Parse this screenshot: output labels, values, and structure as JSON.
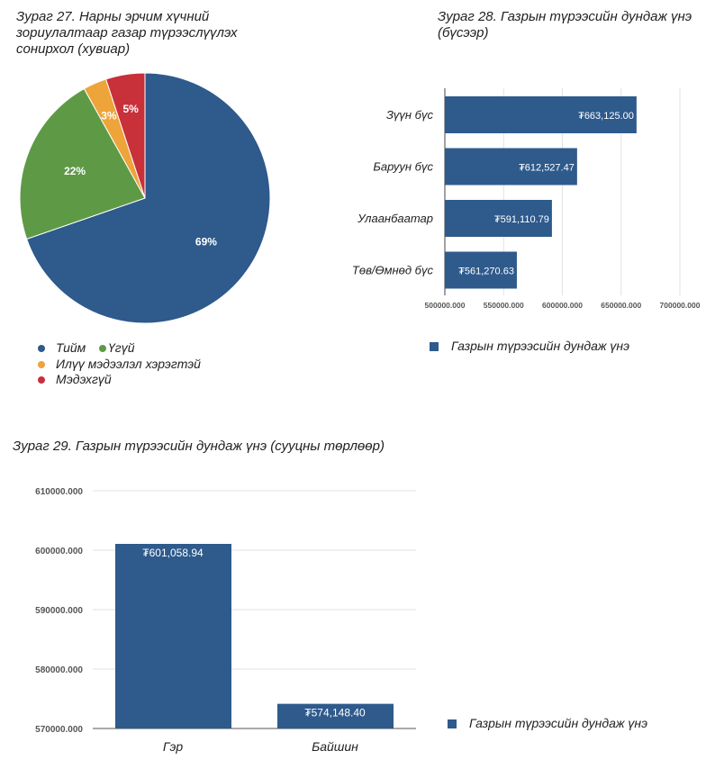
{
  "chart_data": [
    {
      "type": "pie",
      "title": "Зураг 27. Нарны эрчим хүчний зориулалтаар газар түрээслүүлэх сонирхол (хувиар)",
      "slices": [
        {
          "label": "Тийм",
          "value": 69,
          "data_label": "69%",
          "color": "#2e5a8c"
        },
        {
          "label": "Үгүй",
          "value": 22,
          "data_label": "22%",
          "color": "#5e9a46"
        },
        {
          "label": "Илүү мэдээлэл хэрэгтэй",
          "value": 3,
          "data_label": "3%",
          "color": "#eda43a"
        },
        {
          "label": "Мэдэхгүй",
          "value": 5,
          "data_label": "5%",
          "color": "#c8303a"
        }
      ],
      "legend_position": "bottom-left"
    },
    {
      "type": "bar",
      "orientation": "horizontal",
      "title": "Зураг 28. Газрын түрээсийн дундаж үнэ (бүсээр)",
      "categories": [
        "Зүүн бүс",
        "Баруун бүс",
        "Улаанбаатар",
        "Төв/Өмнөд бүс"
      ],
      "values": [
        663125.0,
        612527.47,
        591110.79,
        561270.63
      ],
      "data_labels": [
        "₮663,125.00",
        "₮612,527.47",
        "₮591,110.79",
        "₮561,270.63"
      ],
      "xlim": [
        500000,
        700000
      ],
      "ticks": [
        500000,
        550000,
        600000,
        650000,
        700000
      ],
      "tick_labels": [
        "500000.000",
        "550000.000",
        "600000.000",
        "650000.000",
        "700000.000"
      ],
      "series_name": "Газрын түрээсийн дундаж үнэ",
      "color": "#2e5a8c",
      "grid": true,
      "legend_position": "bottom"
    },
    {
      "type": "bar",
      "orientation": "vertical",
      "title": "Зураг 29. Газрын түрээсийн дундаж үнэ (сууцны төрлөөр)",
      "categories": [
        "Гэр",
        "Байшин"
      ],
      "values": [
        601058.94,
        574148.4
      ],
      "data_labels": [
        "₮601,058.94",
        "₮574,148.40"
      ],
      "ylim": [
        570000,
        610000
      ],
      "ticks": [
        570000,
        580000,
        590000,
        600000,
        610000
      ],
      "tick_labels": [
        "570000.000",
        "580000.000",
        "590000.000",
        "600000.000",
        "610000.000"
      ],
      "series_name": "Газрын түрээсийн дундаж үнэ",
      "color": "#2e5a8c",
      "grid": true,
      "legend_position": "right"
    }
  ]
}
